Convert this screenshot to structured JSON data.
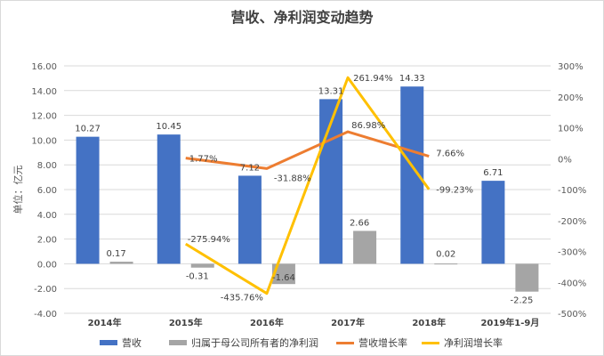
{
  "chart_data": {
    "type": "bar",
    "title": "营收、净利润变动趋势",
    "ylabel": "单位：亿元",
    "categories": [
      "2014年",
      "2015年",
      "2016年",
      "2017年",
      "2018年",
      "2019年1-9月"
    ],
    "ylim": [
      -4,
      16
    ],
    "yticks": [
      "-4.00",
      "-2.00",
      "0.00",
      "2.00",
      "4.00",
      "6.00",
      "8.00",
      "10.00",
      "12.00",
      "14.00",
      "16.00"
    ],
    "y2lim": [
      -500,
      300
    ],
    "y2ticks": [
      "-500%",
      "-400%",
      "-300%",
      "-200%",
      "-100%",
      "0%",
      "100%",
      "200%",
      "300%"
    ],
    "series": [
      {
        "name": "营收",
        "kind": "bar",
        "axis": "left",
        "color": "#4472c4",
        "values": [
          10.27,
          10.45,
          7.12,
          13.31,
          14.33,
          6.71
        ],
        "labels": [
          "10.27",
          "10.45",
          "7.12",
          "13.31",
          "14.33",
          "6.71"
        ]
      },
      {
        "name": "归属于母公司所有者的净利润",
        "kind": "bar",
        "axis": "left",
        "color": "#a5a5a5",
        "values": [
          0.17,
          -0.31,
          -1.64,
          2.66,
          0.02,
          -2.25
        ],
        "labels": [
          "0.17",
          "-0.31",
          "-1.64",
          "2.66",
          "0.02",
          "-2.25"
        ]
      },
      {
        "name": "营收增长率",
        "kind": "line",
        "axis": "right",
        "color": "#ed7d31",
        "values": [
          null,
          1.77,
          -31.88,
          86.98,
          7.66,
          null
        ],
        "labels": [
          "",
          "1.77%",
          "-31.88%",
          "86.98%",
          "7.66%",
          ""
        ]
      },
      {
        "name": "净利润增长率",
        "kind": "line",
        "axis": "right",
        "color": "#ffc000",
        "values": [
          null,
          -275.94,
          -435.76,
          261.94,
          -99.23,
          null
        ],
        "labels": [
          "",
          "-275.94%",
          "-435.76%",
          "261.94%",
          "-99.23%",
          ""
        ]
      }
    ],
    "grid": true,
    "legend": "bottom"
  }
}
